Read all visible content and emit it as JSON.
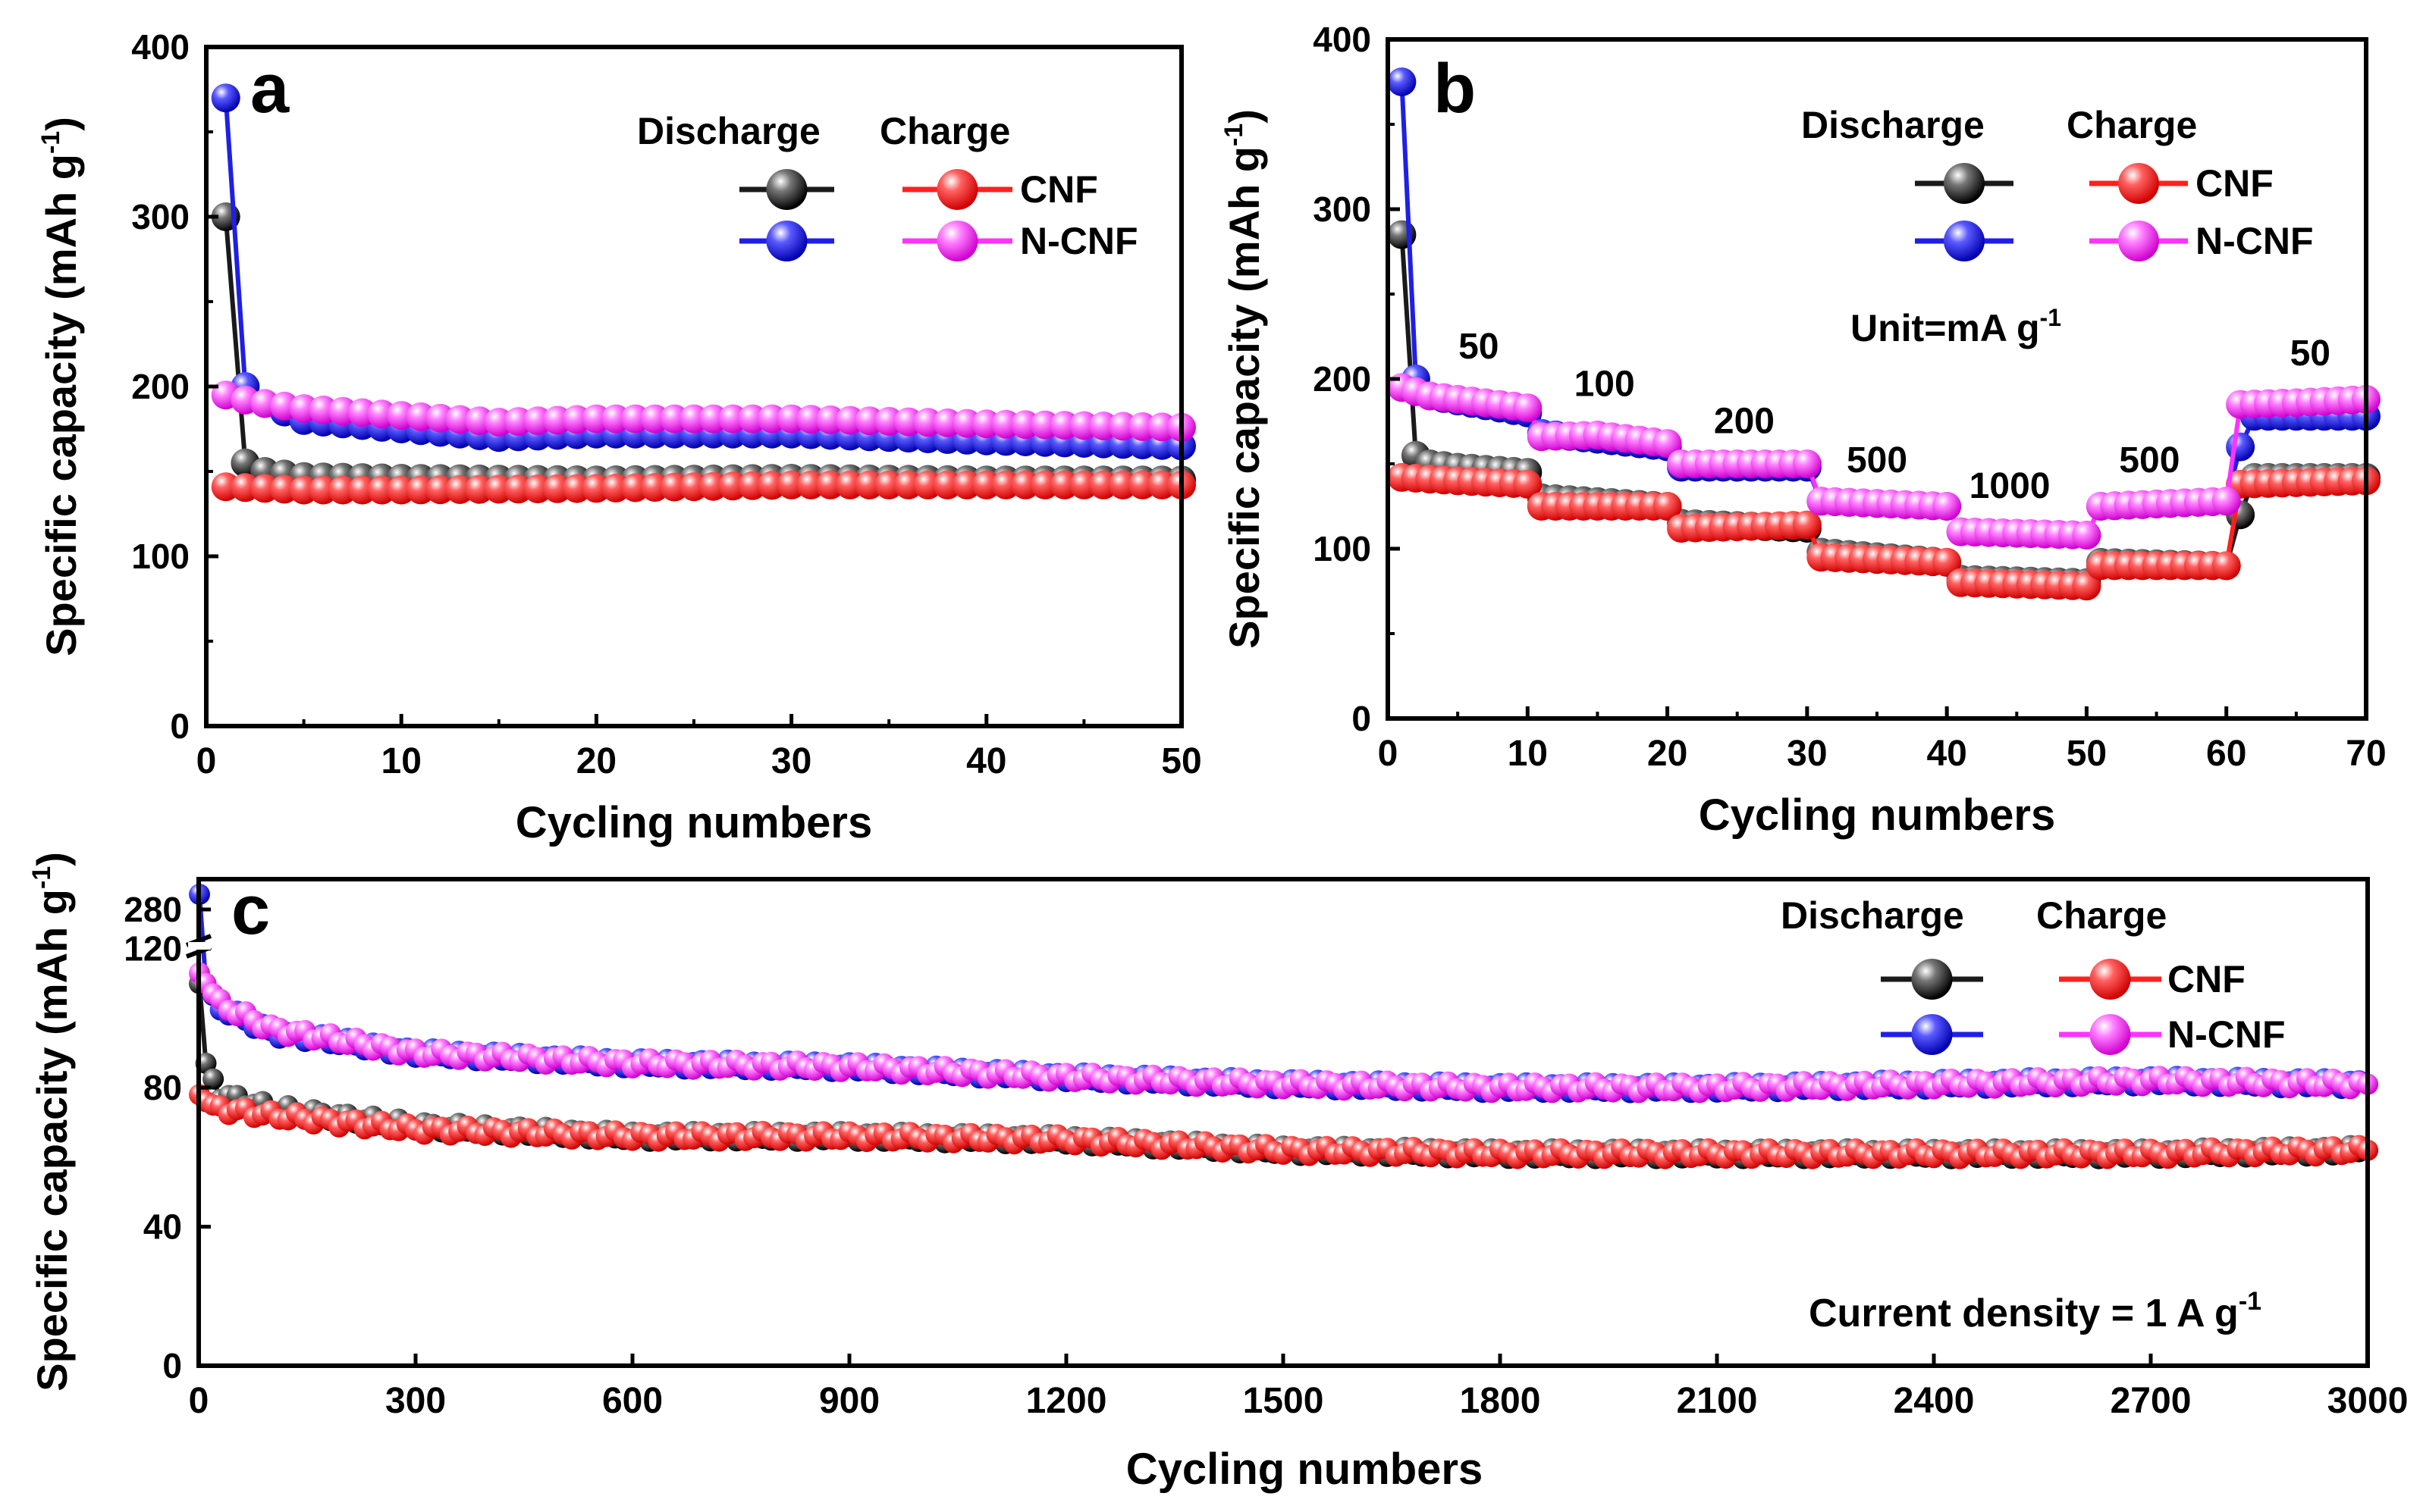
{
  "figure": {
    "legend_header": {
      "discharge": "Discharge",
      "charge": "Charge"
    },
    "sample_labels": {
      "cnf": "CNF",
      "ncnf": "N-CNF"
    },
    "ylabel": "Specific capacity (mAh g",
    "ylabel_sup": "-1",
    "xlabel": "Cycling numbers"
  },
  "colors": {
    "cnf_discharge": "#1a1a1a",
    "cnf_charge": "#ff2020",
    "ncnf_discharge": "#1f1fe6",
    "ncnf_charge": "#ff33ff"
  },
  "chart_data": [
    {
      "id": "a",
      "panel_label": "a",
      "type": "line",
      "xlabel": "Cycling numbers",
      "ylabel": "Specific capacity (mAh g-1)",
      "xlim": [
        0,
        50
      ],
      "ylim": [
        0,
        400
      ],
      "xticks": [
        0,
        10,
        20,
        30,
        40,
        50
      ],
      "yticks": [
        0,
        100,
        200,
        300,
        400
      ],
      "legend_position": "top-right",
      "series": [
        {
          "name": "CNF discharge",
          "role": "discharge",
          "sample": "cnf",
          "points": [
            [
              1,
              300
            ],
            [
              2,
              155
            ],
            [
              3,
              150
            ],
            [
              5,
              147
            ],
            [
              10,
              146
            ],
            [
              20,
              145
            ],
            [
              30,
              146
            ],
            [
              40,
              145
            ],
            [
              50,
              145
            ]
          ]
        },
        {
          "name": "N-CNF discharge",
          "role": "discharge",
          "sample": "ncnf",
          "points": [
            [
              1,
              370
            ],
            [
              2,
              200
            ],
            [
              3,
              190
            ],
            [
              5,
              180
            ],
            [
              10,
              175
            ],
            [
              15,
              170
            ],
            [
              20,
              172
            ],
            [
              30,
              172
            ],
            [
              40,
              168
            ],
            [
              50,
              165
            ]
          ]
        },
        {
          "name": "CNF charge",
          "role": "charge",
          "sample": "cnf",
          "points": [
            [
              1,
              141
            ],
            [
              5,
              139
            ],
            [
              10,
              139
            ],
            [
              20,
              140
            ],
            [
              30,
              142
            ],
            [
              40,
              142
            ],
            [
              50,
              142
            ]
          ]
        },
        {
          "name": "N-CNF charge",
          "role": "charge",
          "sample": "ncnf",
          "points": [
            [
              1,
              195
            ],
            [
              2,
              192
            ],
            [
              3,
              190
            ],
            [
              5,
              187
            ],
            [
              10,
              183
            ],
            [
              15,
              179
            ],
            [
              20,
              181
            ],
            [
              30,
              181
            ],
            [
              40,
              178
            ],
            [
              50,
              176
            ]
          ]
        }
      ],
      "annotations": []
    },
    {
      "id": "b",
      "panel_label": "b",
      "type": "line",
      "xlabel": "Cycling numbers",
      "ylabel": "Specific capacity (mAh g-1)",
      "xlim": [
        0,
        70
      ],
      "ylim": [
        0,
        400
      ],
      "xticks": [
        0,
        10,
        20,
        30,
        40,
        50,
        60,
        70
      ],
      "yticks": [
        0,
        100,
        200,
        300,
        400
      ],
      "legend_position": "top-right",
      "unit_note": {
        "text": "Unit=mA g",
        "sup": "-1"
      },
      "series": [
        {
          "name": "CNF discharge",
          "role": "discharge",
          "sample": "cnf",
          "points": [
            [
              1,
              285
            ],
            [
              2,
              155
            ],
            [
              3,
              150
            ],
            [
              5,
              148
            ],
            [
              10,
              145
            ],
            [
              11,
              130
            ],
            [
              20,
              125
            ],
            [
              21,
              115
            ],
            [
              30,
              112
            ],
            [
              31,
              98
            ],
            [
              40,
              92
            ],
            [
              41,
              82
            ],
            [
              50,
              80
            ],
            [
              51,
              92
            ],
            [
              60,
              90
            ],
            [
              61,
              120
            ],
            [
              62,
              142
            ],
            [
              70,
              142
            ]
          ]
        },
        {
          "name": "N-CNF discharge",
          "role": "discharge",
          "sample": "ncnf",
          "points": [
            [
              1,
              375
            ],
            [
              2,
              200
            ],
            [
              3,
              190
            ],
            [
              5,
              187
            ],
            [
              10,
              180
            ],
            [
              11,
              168
            ],
            [
              20,
              160
            ],
            [
              21,
              148
            ],
            [
              30,
              148
            ],
            [
              31,
              128
            ],
            [
              40,
              125
            ],
            [
              41,
              110
            ],
            [
              50,
              108
            ],
            [
              51,
              125
            ],
            [
              60,
              128
            ],
            [
              61,
              160
            ],
            [
              62,
              178
            ],
            [
              70,
              178
            ]
          ]
        },
        {
          "name": "CNF charge",
          "role": "charge",
          "sample": "cnf",
          "points": [
            [
              1,
              142
            ],
            [
              5,
              140
            ],
            [
              10,
              138
            ],
            [
              11,
              125
            ],
            [
              20,
              125
            ],
            [
              21,
              112
            ],
            [
              30,
              114
            ],
            [
              31,
              95
            ],
            [
              40,
              92
            ],
            [
              41,
              80
            ],
            [
              50,
              78
            ],
            [
              51,
              90
            ],
            [
              60,
              90
            ],
            [
              61,
              138
            ],
            [
              70,
              140
            ]
          ]
        },
        {
          "name": "N-CNF charge",
          "role": "charge",
          "sample": "ncnf",
          "points": [
            [
              1,
              195
            ],
            [
              3,
              190
            ],
            [
              5,
              188
            ],
            [
              10,
              183
            ],
            [
              11,
              166
            ],
            [
              15,
              167
            ],
            [
              20,
              162
            ],
            [
              21,
              150
            ],
            [
              25,
              150
            ],
            [
              30,
              150
            ],
            [
              31,
              128
            ],
            [
              40,
              125
            ],
            [
              41,
              110
            ],
            [
              50,
              108
            ],
            [
              51,
              125
            ],
            [
              60,
              128
            ],
            [
              61,
              185
            ],
            [
              65,
              186
            ],
            [
              70,
              188
            ]
          ]
        }
      ],
      "annotations": [
        {
          "text": "50",
          "x": 6.5,
          "y": 212
        },
        {
          "text": "100",
          "x": 15.5,
          "y": 190
        },
        {
          "text": "200",
          "x": 25.5,
          "y": 168
        },
        {
          "text": "500",
          "x": 35,
          "y": 145
        },
        {
          "text": "1000",
          "x": 44.5,
          "y": 130
        },
        {
          "text": "500",
          "x": 54.5,
          "y": 145
        },
        {
          "text": "50",
          "x": 66,
          "y": 208
        }
      ]
    },
    {
      "id": "c",
      "panel_label": "c",
      "type": "line",
      "xlabel": "Cycling numbers",
      "ylabel": "Specific capacity (mAh g-1)",
      "xlim": [
        0,
        3000
      ],
      "ylim": [
        0,
        140
      ],
      "axis_break": "between 120 and 280",
      "xticks": [
        0,
        300,
        600,
        900,
        1200,
        1500,
        1800,
        2100,
        2400,
        2700,
        3000
      ],
      "yticks": [
        0,
        40,
        80,
        120
      ],
      "broken_top_tick": {
        "label": "280",
        "value": 280
      },
      "legend_position": "top-right",
      "current_density_note": {
        "text": "Current density = 1 A g",
        "sup": "-1"
      },
      "series": [
        {
          "name": "CNF discharge",
          "role": "discharge",
          "sample": "cnf",
          "points": [
            [
              1,
              110
            ],
            [
              10,
              87
            ],
            [
              30,
              78
            ],
            [
              100,
              74
            ],
            [
              300,
              69
            ],
            [
              600,
              66
            ],
            [
              900,
              66
            ],
            [
              1200,
              65
            ],
            [
              1500,
              62
            ],
            [
              1800,
              61
            ],
            [
              2100,
              61
            ],
            [
              2400,
              61
            ],
            [
              2700,
              61
            ],
            [
              3000,
              62
            ]
          ]
        },
        {
          "name": "N-CNF discharge",
          "role": "discharge",
          "sample": "ncnf",
          "points": [
            [
              1,
              280
            ],
            [
              10,
              110
            ],
            [
              30,
              103
            ],
            [
              100,
              96
            ],
            [
              300,
              90
            ],
            [
              600,
              87
            ],
            [
              900,
              86
            ],
            [
              1200,
              83
            ],
            [
              1500,
              81
            ],
            [
              1800,
              80
            ],
            [
              2100,
              80
            ],
            [
              2400,
              81
            ],
            [
              2700,
              82
            ],
            [
              3000,
              81
            ]
          ]
        },
        {
          "name": "CNF charge",
          "role": "charge",
          "sample": "cnf",
          "points": [
            [
              1,
              78
            ],
            [
              10,
              76
            ],
            [
              30,
              74
            ],
            [
              100,
              72
            ],
            [
              300,
              68
            ],
            [
              600,
              66
            ],
            [
              900,
              66
            ],
            [
              1200,
              65
            ],
            [
              1500,
              62
            ],
            [
              1800,
              61
            ],
            [
              2100,
              61
            ],
            [
              2400,
              61
            ],
            [
              2700,
              61
            ],
            [
              3000,
              62
            ]
          ]
        },
        {
          "name": "N-CNF charge",
          "role": "charge",
          "sample": "ncnf",
          "points": [
            [
              1,
              113
            ],
            [
              10,
              110
            ],
            [
              30,
              104
            ],
            [
              100,
              97
            ],
            [
              300,
              90
            ],
            [
              600,
              87
            ],
            [
              900,
              86
            ],
            [
              1200,
              83
            ],
            [
              1500,
              81
            ],
            [
              1800,
              80
            ],
            [
              2100,
              80
            ],
            [
              2400,
              81
            ],
            [
              2700,
              82
            ],
            [
              3000,
              81
            ]
          ]
        }
      ],
      "annotations": []
    }
  ]
}
